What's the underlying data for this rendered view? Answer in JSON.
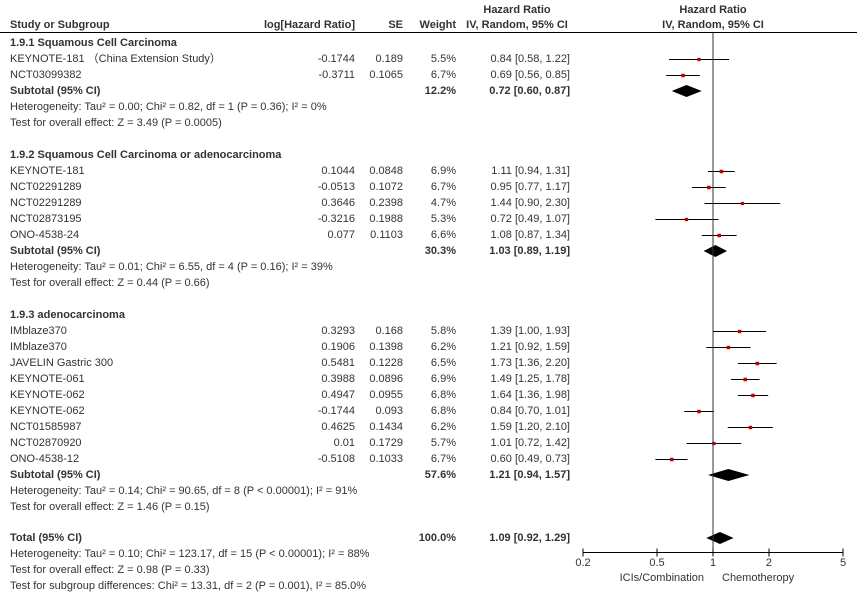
{
  "chart_data": {
    "type": "forest",
    "effect_measure": "Hazard Ratio",
    "method": "IV, Random, 95% CI",
    "headers": {
      "study": "Study or Subgroup",
      "log_hr": "log[Hazard Ratio]",
      "se": "SE",
      "weight": "Weight",
      "hr_top": "Hazard Ratio",
      "hr_bottom": "IV, Random, 95% CI",
      "plot_top": "Hazard Ratio",
      "plot_bottom": "IV, Random, 95% CI"
    },
    "subgroups": [
      {
        "title": "1.9.1 Squamous Cell Carcinoma",
        "studies": [
          {
            "name": "KEYNOTE-181 （China Extension Study）",
            "log_hr": "-0.1744",
            "se": "0.189",
            "weight": "5.5%",
            "hr_text": "0.84 [0.58, 1.22]",
            "hr": 0.84,
            "lo": 0.58,
            "hi": 1.22
          },
          {
            "name": "NCT03099382",
            "log_hr": "-0.3711",
            "se": "0.1065",
            "weight": "6.7%",
            "hr_text": "0.69 [0.56, 0.85]",
            "hr": 0.69,
            "lo": 0.56,
            "hi": 0.85
          }
        ],
        "subtotal": {
          "label": "Subtotal (95% CI)",
          "weight": "12.2%",
          "hr_text": "0.72 [0.60, 0.87]",
          "hr": 0.72,
          "lo": 0.6,
          "hi": 0.87
        },
        "heterogeneity": "Heterogeneity: Tau² = 0.00; Chi² = 0.82, df = 1 (P = 0.36); I² = 0%",
        "overall": "Test for overall effect: Z = 3.49 (P = 0.0005)"
      },
      {
        "title": "1.9.2 Squamous Cell Carcinoma or adenocarcinoma",
        "studies": [
          {
            "name": "KEYNOTE-181",
            "log_hr": "0.1044",
            "se": "0.0848",
            "weight": "6.9%",
            "hr_text": "1.11 [0.94, 1.31]",
            "hr": 1.11,
            "lo": 0.94,
            "hi": 1.31
          },
          {
            "name": "NCT02291289",
            "log_hr": "-0.0513",
            "se": "0.1072",
            "weight": "6.7%",
            "hr_text": "0.95 [0.77, 1.17]",
            "hr": 0.95,
            "lo": 0.77,
            "hi": 1.17
          },
          {
            "name": "NCT02291289",
            "log_hr": "0.3646",
            "se": "0.2398",
            "weight": "4.7%",
            "hr_text": "1.44 [0.90, 2.30]",
            "hr": 1.44,
            "lo": 0.9,
            "hi": 2.3
          },
          {
            "name": "NCT02873195",
            "log_hr": "-0.3216",
            "se": "0.1988",
            "weight": "5.3%",
            "hr_text": "0.72 [0.49, 1.07]",
            "hr": 0.72,
            "lo": 0.49,
            "hi": 1.07
          },
          {
            "name": "ONO-4538-24",
            "log_hr": "0.077",
            "se": "0.1103",
            "weight": "6.6%",
            "hr_text": "1.08 [0.87, 1.34]",
            "hr": 1.08,
            "lo": 0.87,
            "hi": 1.34
          }
        ],
        "subtotal": {
          "label": "Subtotal (95% CI)",
          "weight": "30.3%",
          "hr_text": "1.03 [0.89, 1.19]",
          "hr": 1.03,
          "lo": 0.89,
          "hi": 1.19
        },
        "heterogeneity": "Heterogeneity: Tau² = 0.01; Chi² = 6.55, df = 4 (P = 0.16); I² = 39%",
        "overall": "Test for overall effect: Z = 0.44 (P = 0.66)"
      },
      {
        "title": "1.9.3 adenocarcinoma",
        "studies": [
          {
            "name": "IMblaze370",
            "log_hr": "0.3293",
            "se": "0.168",
            "weight": "5.8%",
            "hr_text": "1.39 [1.00, 1.93]",
            "hr": 1.39,
            "lo": 1.0,
            "hi": 1.93
          },
          {
            "name": "IMblaze370",
            "log_hr": "0.1906",
            "se": "0.1398",
            "weight": "6.2%",
            "hr_text": "1.21 [0.92, 1.59]",
            "hr": 1.21,
            "lo": 0.92,
            "hi": 1.59
          },
          {
            "name": "JAVELIN Gastric 300",
            "log_hr": "0.5481",
            "se": "0.1228",
            "weight": "6.5%",
            "hr_text": "1.73 [1.36, 2.20]",
            "hr": 1.73,
            "lo": 1.36,
            "hi": 2.2
          },
          {
            "name": "KEYNOTE-061",
            "log_hr": "0.3988",
            "se": "0.0896",
            "weight": "6.9%",
            "hr_text": "1.49 [1.25, 1.78]",
            "hr": 1.49,
            "lo": 1.25,
            "hi": 1.78
          },
          {
            "name": "KEYNOTE-062",
            "log_hr": "0.4947",
            "se": "0.0955",
            "weight": "6.8%",
            "hr_text": "1.64 [1.36, 1.98]",
            "hr": 1.64,
            "lo": 1.36,
            "hi": 1.98
          },
          {
            "name": "KEYNOTE-062",
            "log_hr": "-0.1744",
            "se": "0.093",
            "weight": "6.8%",
            "hr_text": "0.84 [0.70, 1.01]",
            "hr": 0.84,
            "lo": 0.7,
            "hi": 1.01
          },
          {
            "name": "NCT01585987",
            "log_hr": "0.4625",
            "se": "0.1434",
            "weight": "6.2%",
            "hr_text": "1.59 [1.20, 2.10]",
            "hr": 1.59,
            "lo": 1.2,
            "hi": 2.1
          },
          {
            "name": "NCT02870920",
            "log_hr": "0.01",
            "se": "0.1729",
            "weight": "5.7%",
            "hr_text": "1.01 [0.72, 1.42]",
            "hr": 1.01,
            "lo": 0.72,
            "hi": 1.42
          },
          {
            "name": "ONO-4538-12",
            "log_hr": "-0.5108",
            "se": "0.1033",
            "weight": "6.7%",
            "hr_text": "0.60 [0.49, 0.73]",
            "hr": 0.6,
            "lo": 0.49,
            "hi": 0.73
          }
        ],
        "subtotal": {
          "label": "Subtotal (95% CI)",
          "weight": "57.6%",
          "hr_text": "1.21 [0.94, 1.57]",
          "hr": 1.21,
          "lo": 0.94,
          "hi": 1.57
        },
        "heterogeneity": "Heterogeneity: Tau² = 0.14; Chi² = 90.65, df = 8 (P < 0.00001); I² = 91%",
        "overall": "Test for overall effect: Z = 1.46 (P = 0.15)"
      }
    ],
    "total": {
      "label": "Total (95% CI)",
      "weight": "100.0%",
      "hr_text": "1.09 [0.92, 1.29]",
      "hr": 1.09,
      "lo": 0.92,
      "hi": 1.29,
      "heterogeneity": "Heterogeneity: Tau² = 0.10; Chi² = 123.17, df = 15 (P < 0.00001); I² = 88%",
      "overall": "Test for overall effect: Z = 0.98 (P = 0.33)",
      "subgroup_diff": "Test for subgroup differences: Chi² = 13.31, df = 2 (P = 0.001), I² = 85.0%"
    },
    "x_axis": {
      "scale": "log",
      "range": [
        0.2,
        5
      ],
      "ticks": [
        0.2,
        0.5,
        1,
        2,
        5
      ],
      "tick_labels": [
        "0.2",
        "0.5",
        "1",
        "2",
        "5"
      ],
      "left_label": "ICIs/Combination",
      "right_label": "Chemotheropy"
    },
    "colors": {
      "marker": "#c00000",
      "diamond": "#000000",
      "text": "#333333"
    }
  }
}
